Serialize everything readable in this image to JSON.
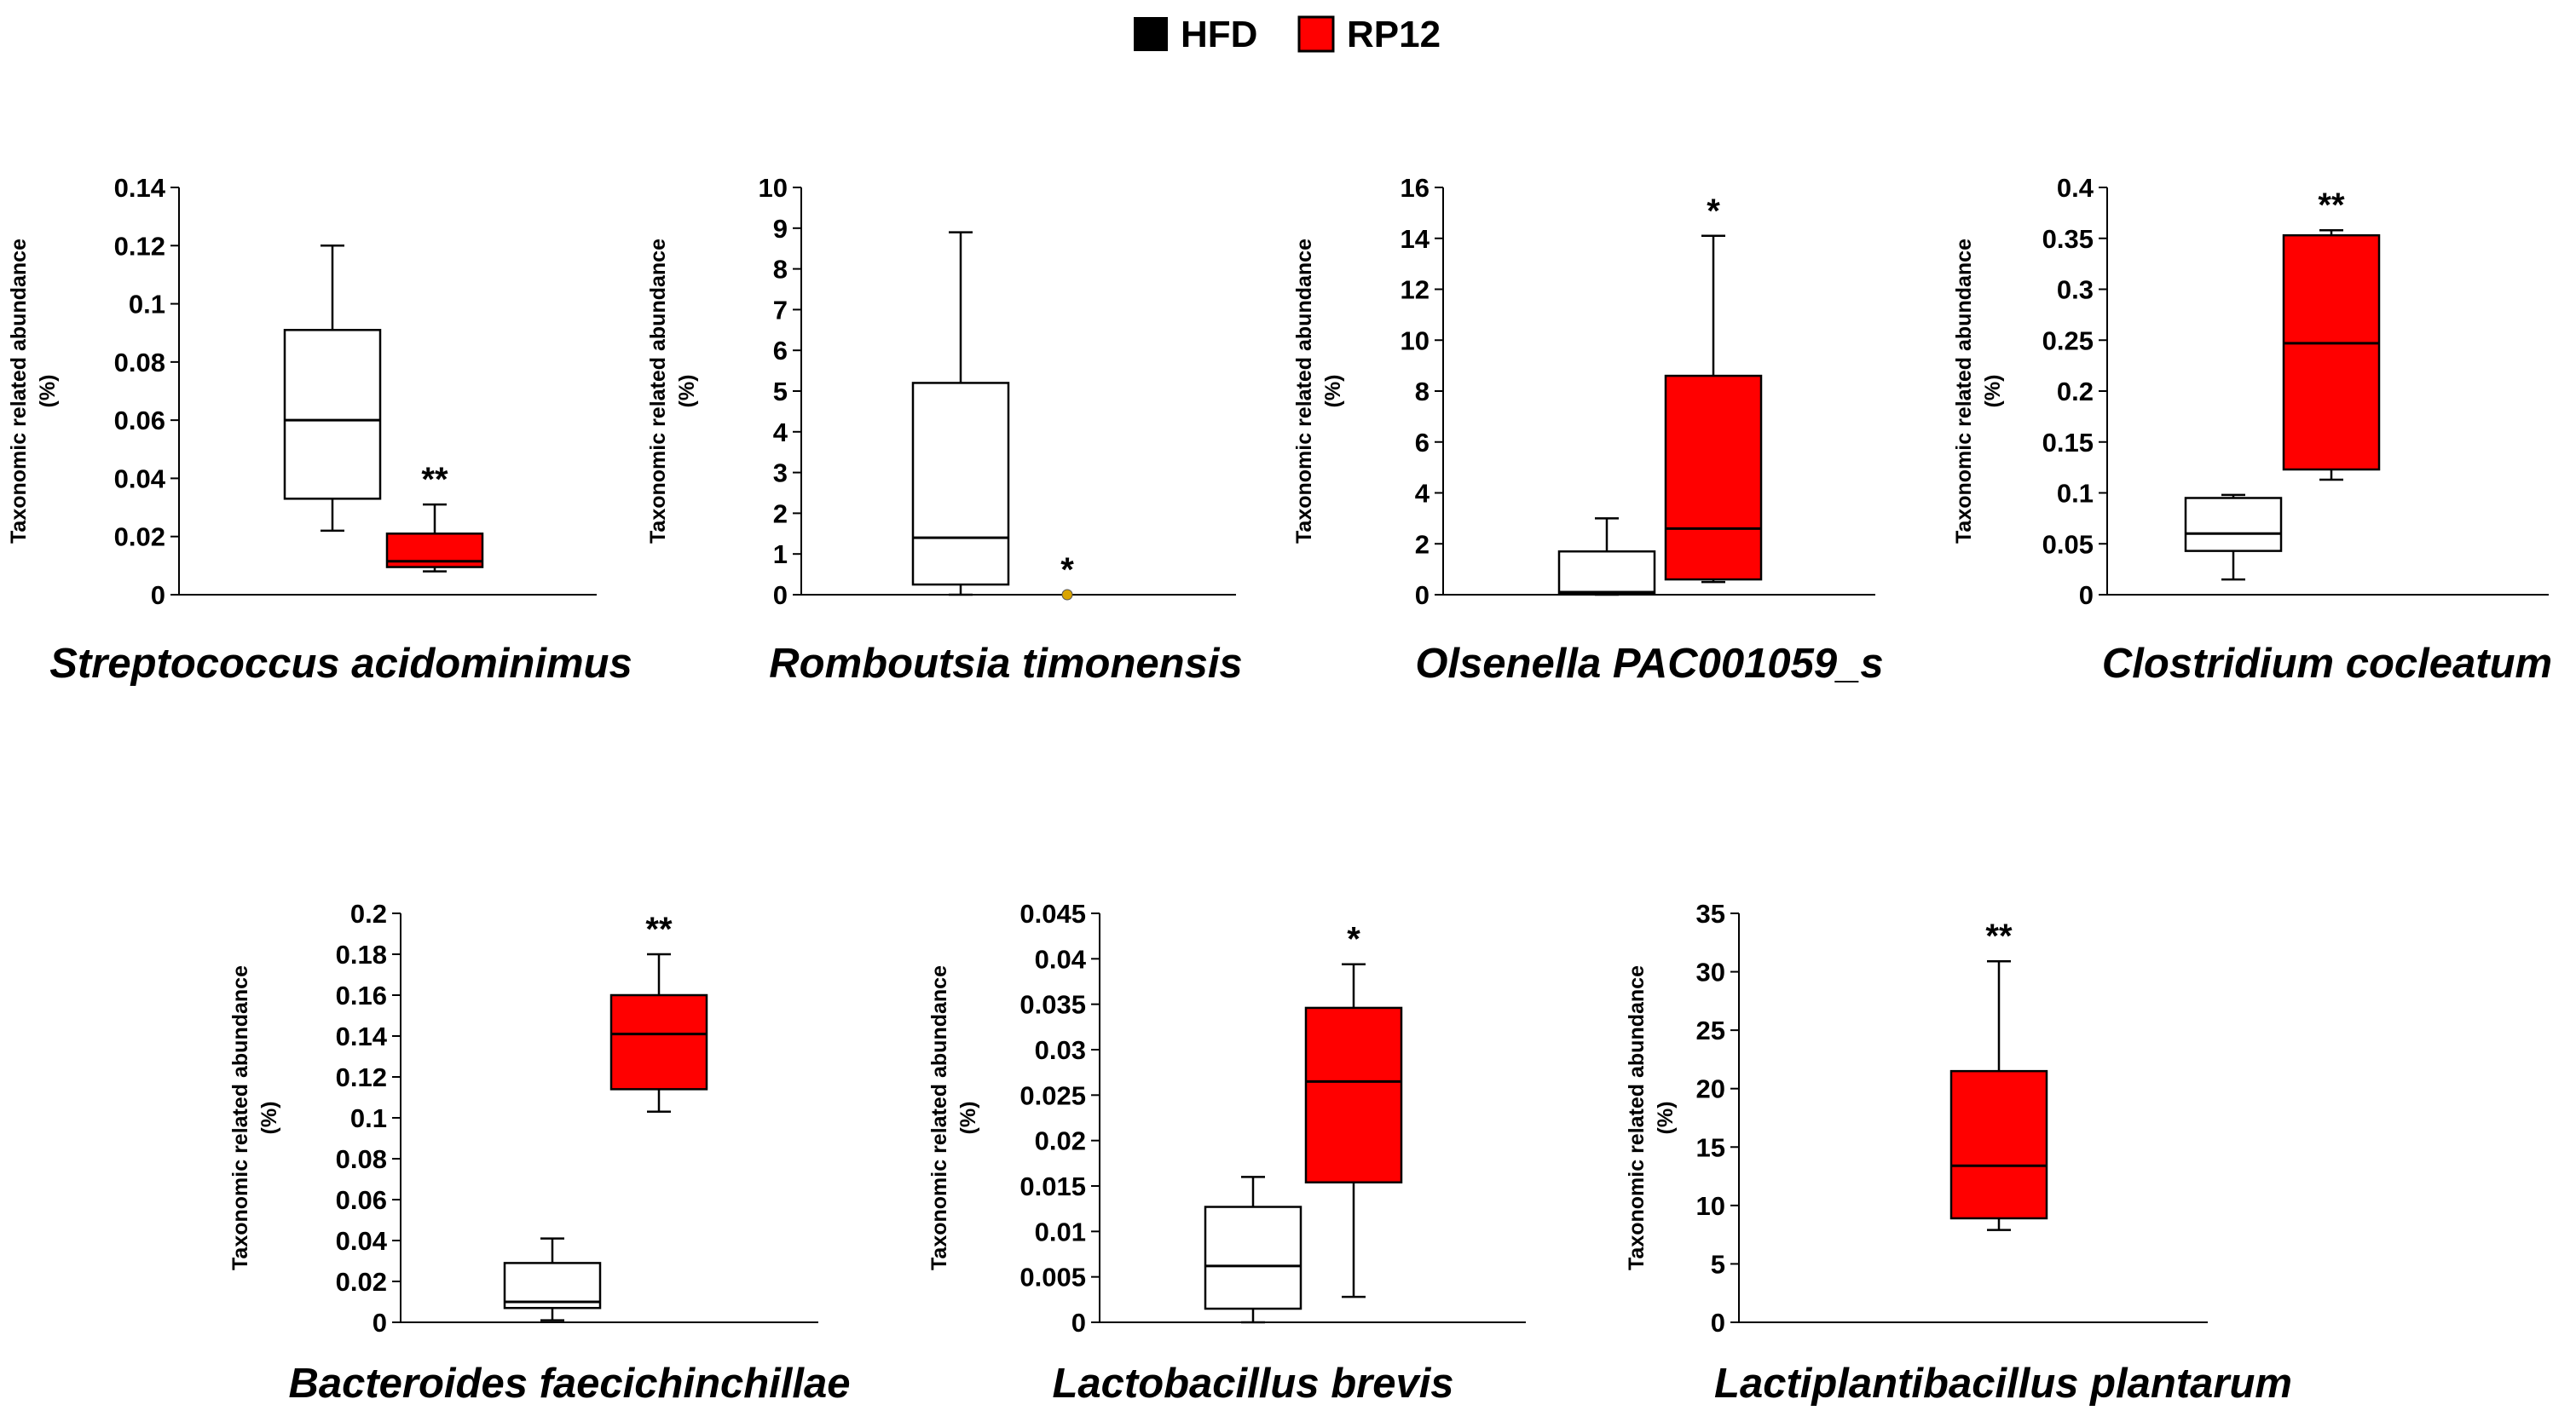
{
  "legend": [
    {
      "label": "HFD",
      "color": "#000000"
    },
    {
      "label": "RP12",
      "color": "#ff0000"
    }
  ],
  "chart_data": [
    {
      "type": "box",
      "title": "Streptococcus acidominimus",
      "ylabel": "Taxonomic related abundance (%)",
      "ylim": [
        0,
        0.14
      ],
      "ytick_labels": [
        "0",
        "0.02",
        "0.04",
        "0.06",
        "0.08",
        "0.1",
        "0.12",
        "0.14"
      ],
      "series": [
        {
          "name": "HFD",
          "color": "#ffffff",
          "min": 0.022,
          "q1": 0.033,
          "median": 0.06,
          "q3": 0.091,
          "max": 0.12
        },
        {
          "name": "RP12",
          "color": "#ff0000",
          "min": 0.008,
          "q1": 0.0095,
          "median": 0.0115,
          "q3": 0.021,
          "max": 0.031,
          "significance": "**"
        }
      ]
    },
    {
      "type": "box",
      "title": "Romboutsia timonensis",
      "ylabel": "Taxonomic related abundance (%)",
      "ylim": [
        0,
        10
      ],
      "ytick_labels": [
        "0",
        "1",
        "2",
        "3",
        "4",
        "5",
        "6",
        "7",
        "8",
        "9",
        "10"
      ],
      "series": [
        {
          "name": "HFD",
          "color": "#ffffff",
          "min": 0,
          "q1": 0.25,
          "median": 1.4,
          "q3": 5.2,
          "max": 8.9
        },
        {
          "name": "RP12",
          "color": "#ff0000",
          "min": 0,
          "q1": 0,
          "median": 0,
          "q3": 0,
          "max": 0,
          "significance": "*"
        }
      ]
    },
    {
      "type": "box",
      "title": "Olsenella PAC001059_s",
      "ylabel": "Taxonomic related abundance (%)",
      "ylim": [
        0,
        16
      ],
      "ytick_labels": [
        "0",
        "2",
        "4",
        "6",
        "8",
        "10",
        "12",
        "14",
        "16"
      ],
      "series": [
        {
          "name": "HFD",
          "color": "#ffffff",
          "min": 0,
          "q1": 0.05,
          "median": 0.1,
          "q3": 1.7,
          "max": 3.0
        },
        {
          "name": "RP12",
          "color": "#ff0000",
          "min": 0.5,
          "q1": 0.6,
          "median": 2.6,
          "q3": 8.6,
          "max": 14.1,
          "significance": "*"
        }
      ]
    },
    {
      "type": "box",
      "title": "Clostridium cocleatum",
      "ylabel": "Taxonomic related abundance (%)",
      "ylim": [
        0,
        0.4
      ],
      "ytick_labels": [
        "0",
        "0.05",
        "0.1",
        "0.15",
        "0.2",
        "0.25",
        "0.3",
        "0.35",
        "0.4"
      ],
      "series": [
        {
          "name": "HFD",
          "color": "#ffffff",
          "min": 0.015,
          "q1": 0.043,
          "median": 0.06,
          "q3": 0.095,
          "max": 0.098
        },
        {
          "name": "RP12",
          "color": "#ff0000",
          "min": 0.113,
          "q1": 0.123,
          "median": 0.247,
          "q3": 0.353,
          "max": 0.358,
          "significance": "**"
        }
      ]
    },
    {
      "type": "box",
      "title": "Bacteroides faecichinchillae",
      "ylabel": "Taxonomic related abundance (%)",
      "ylim": [
        0,
        0.2
      ],
      "ytick_labels": [
        "0",
        "0.02",
        "0.04",
        "0.06",
        "0.08",
        "0.1",
        "0.12",
        "0.14",
        "0.16",
        "0.18",
        "0.2"
      ],
      "series": [
        {
          "name": "HFD",
          "color": "#ffffff",
          "min": 0.001,
          "q1": 0.007,
          "median": 0.01,
          "q3": 0.029,
          "max": 0.041
        },
        {
          "name": "RP12",
          "color": "#ff0000",
          "min": 0.103,
          "q1": 0.114,
          "median": 0.141,
          "q3": 0.16,
          "max": 0.18,
          "significance": "**"
        }
      ]
    },
    {
      "type": "box",
      "title": "Lactobacillus brevis",
      "ylabel": "Taxonomic related abundance (%)",
      "ylim": [
        0,
        0.045
      ],
      "ytick_labels": [
        "0",
        "0.005",
        "0.01",
        "0.015",
        "0.02",
        "0.025",
        "0.03",
        "0.035",
        "0.04",
        "0.045"
      ],
      "series": [
        {
          "name": "HFD",
          "color": "#ffffff",
          "min": 0,
          "q1": 0.0015,
          "median": 0.0062,
          "q3": 0.0127,
          "max": 0.016
        },
        {
          "name": "RP12",
          "color": "#ff0000",
          "min": 0.0028,
          "q1": 0.0154,
          "median": 0.0265,
          "q3": 0.0346,
          "max": 0.0394,
          "significance": "*"
        }
      ]
    },
    {
      "type": "box",
      "title": "Lactiplantibacillus plantarum",
      "ylabel": "Taxonomic related abundance (%)",
      "ylim": [
        0,
        35
      ],
      "ytick_labels": [
        "0",
        "5",
        "10",
        "15",
        "20",
        "25",
        "30",
        "35"
      ],
      "series": [
        {
          "name": "HFD",
          "color": "#ffffff",
          "min": 0,
          "q1": 0,
          "median": 0,
          "q3": 0,
          "max": 0
        },
        {
          "name": "RP12",
          "color": "#ff0000",
          "min": 7.9,
          "q1": 8.9,
          "median": 13.4,
          "q3": 21.5,
          "max": 30.9,
          "significance": "**"
        }
      ]
    }
  ]
}
